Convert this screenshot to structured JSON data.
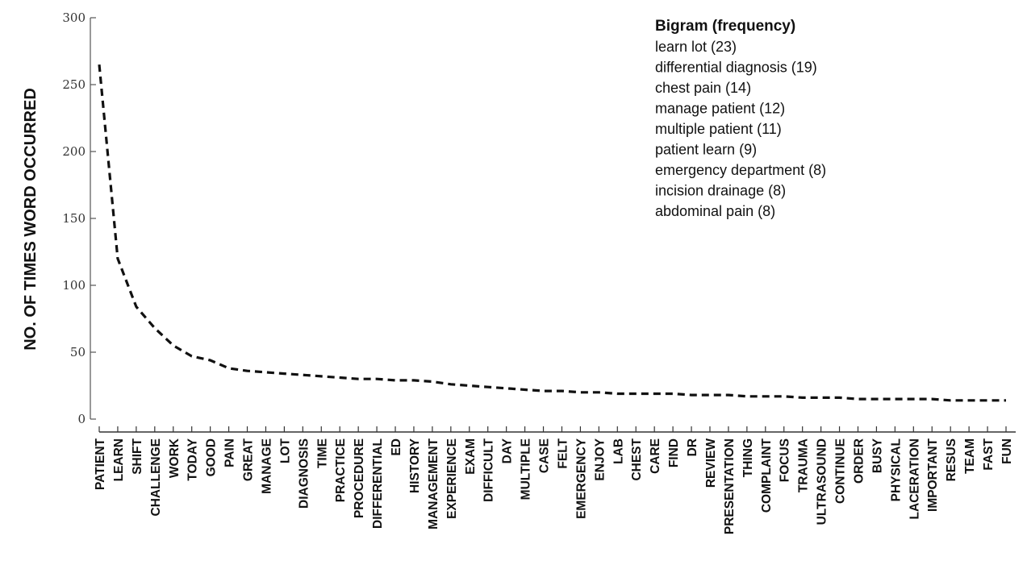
{
  "chart_data": {
    "type": "line",
    "ylabel": "NO. OF TIMES WORD OCCURRED",
    "xlabel": "",
    "ylim": [
      0,
      300
    ],
    "yticks": [
      0,
      50,
      100,
      150,
      200,
      250,
      300
    ],
    "line_style": "dashed",
    "line_color": "#111111",
    "categories": [
      "PATIENT",
      "LEARN",
      "SHIFT",
      "CHALLENGE",
      "WORK",
      "TODAY",
      "GOOD",
      "PAIN",
      "GREAT",
      "MANAGE",
      "LOT",
      "DIAGNOSIS",
      "TIME",
      "PRACTICE",
      "PROCEDURE",
      "DIFFERENTIAL",
      "ED",
      "HISTORY",
      "MANAGEMENT",
      "EXPERIENCE",
      "EXAM",
      "DIFFICULT",
      "DAY",
      "MULTIPLE",
      "CASE",
      "FELT",
      "EMERGENCY",
      "ENJOY",
      "LAB",
      "CHEST",
      "CARE",
      "FIND",
      "DR",
      "REVIEW",
      "PRESENTATION",
      "THING",
      "COMPLAINT",
      "FOCUS",
      "TRAUMA",
      "ULTRASOUND",
      "CONTINUE",
      "ORDER",
      "BUSY",
      "PHYSICAL",
      "LACERATION",
      "IMPORTANT",
      "RESUS",
      "TEAM",
      "FAST",
      "FUN"
    ],
    "values": [
      265,
      120,
      84,
      68,
      55,
      47,
      44,
      38,
      36,
      35,
      34,
      33,
      32,
      31,
      30,
      30,
      29,
      29,
      28,
      26,
      25,
      24,
      23,
      22,
      21,
      21,
      20,
      20,
      19,
      19,
      19,
      19,
      18,
      18,
      18,
      17,
      17,
      17,
      16,
      16,
      16,
      15,
      15,
      15,
      15,
      15,
      14,
      14,
      14,
      14
    ],
    "legend": {
      "title": "Bigram (frequency)",
      "position": "top-right",
      "items": [
        "learn lot (23)",
        "differential diagnosis (19)",
        "chest pain (14)",
        "manage patient (12)",
        "multiple patient (11)",
        "patient learn (9)",
        "emergency department (8)",
        "incision drainage (8)",
        "abdominal pain (8)"
      ]
    }
  }
}
